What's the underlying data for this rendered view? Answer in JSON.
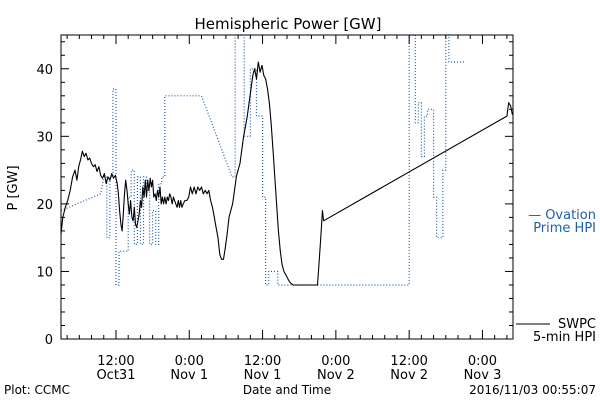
{
  "chart_data": {
    "type": "line",
    "title": "Hemispheric Power [GW]",
    "xlabel": "Date and Time",
    "ylabel": "P [GW]",
    "x_unit": "hours after 2016-10-31 00:00",
    "xlim": [
      3,
      77
    ],
    "ylim": [
      0,
      45
    ],
    "y_ticks": [
      0,
      10,
      20,
      30,
      40
    ],
    "x_ticks": [
      {
        "x": 12,
        "top": "12:00",
        "bottom": "Oct31"
      },
      {
        "x": 24,
        "top": "0:00",
        "bottom": "Nov 1"
      },
      {
        "x": 36,
        "top": "12:00",
        "bottom": "Nov 1"
      },
      {
        "x": 48,
        "top": "0:00",
        "bottom": "Nov 2"
      },
      {
        "x": 60,
        "top": "12:00",
        "bottom": "Nov 2"
      },
      {
        "x": 72,
        "top": "0:00",
        "bottom": "Nov 3"
      }
    ],
    "legend": {
      "ovation_lines": [
        "— Ovation",
        "Prime HPI"
      ],
      "swpc_lines": [
        "SWPC",
        "5-min HPI"
      ],
      "placement": "right"
    },
    "footer": {
      "left": "Plot: CCMC",
      "right": "2016/11/03 00:55:07"
    },
    "colors": {
      "swpc": "#000000",
      "ovation": "#1f5fa8",
      "axes": "#000000"
    },
    "series": [
      {
        "name": "SWPC 5-min HPI",
        "style": "solid",
        "points": [
          [
            3.0,
            15.5
          ],
          [
            3.3,
            18.0
          ],
          [
            3.7,
            19.5
          ],
          [
            4.1,
            20.5
          ],
          [
            4.5,
            22.0
          ],
          [
            4.9,
            24.0
          ],
          [
            5.3,
            25.0
          ],
          [
            5.6,
            23.5
          ],
          [
            5.9,
            25.5
          ],
          [
            6.2,
            26.5
          ],
          [
            6.5,
            27.8
          ],
          [
            6.8,
            27.0
          ],
          [
            7.1,
            27.5
          ],
          [
            7.4,
            26.5
          ],
          [
            7.7,
            26.8
          ],
          [
            8.0,
            26.0
          ],
          [
            8.3,
            25.5
          ],
          [
            8.6,
            25.8
          ],
          [
            8.9,
            24.8
          ],
          [
            9.2,
            25.5
          ],
          [
            9.5,
            24.2
          ],
          [
            9.8,
            23.8
          ],
          [
            10.1,
            24.5
          ],
          [
            10.4,
            23.0
          ],
          [
            10.7,
            24.0
          ],
          [
            11.0,
            23.5
          ],
          [
            11.3,
            24.5
          ],
          [
            11.6,
            23.8
          ],
          [
            11.9,
            24.2
          ],
          [
            12.2,
            23.0
          ],
          [
            12.4,
            21.5
          ],
          [
            12.6,
            19.0
          ],
          [
            12.8,
            17.0
          ],
          [
            13.0,
            16.0
          ],
          [
            13.2,
            18.5
          ],
          [
            13.4,
            21.5
          ],
          [
            13.6,
            23.5
          ],
          [
            13.8,
            22.0
          ],
          [
            14.0,
            20.0
          ],
          [
            14.2,
            18.5
          ],
          [
            14.4,
            20.5
          ],
          [
            14.6,
            18.0
          ],
          [
            14.8,
            17.5
          ],
          [
            15.0,
            19.5
          ],
          [
            15.2,
            17.0
          ],
          [
            15.4,
            16.5
          ],
          [
            15.6,
            17.5
          ],
          [
            15.8,
            18.5
          ],
          [
            16.0,
            20.5
          ],
          [
            16.2,
            19.5
          ],
          [
            16.4,
            22.5
          ],
          [
            16.6,
            21.0
          ],
          [
            16.8,
            23.5
          ],
          [
            17.0,
            21.0
          ],
          [
            17.2,
            23.5
          ],
          [
            17.4,
            22.0
          ],
          [
            17.6,
            23.8
          ],
          [
            17.8,
            22.5
          ],
          [
            18.0,
            23.5
          ],
          [
            18.2,
            21.0
          ],
          [
            18.4,
            21.5
          ],
          [
            18.6,
            20.5
          ],
          [
            18.8,
            22.0
          ],
          [
            19.0,
            21.0
          ],
          [
            19.2,
            22.5
          ],
          [
            19.4,
            20.0
          ],
          [
            19.6,
            21.0
          ],
          [
            19.8,
            20.0
          ],
          [
            20.0,
            21.0
          ],
          [
            20.2,
            20.0
          ],
          [
            20.4,
            21.0
          ],
          [
            20.6,
            20.5
          ],
          [
            20.8,
            21.5
          ],
          [
            21.0,
            21.0
          ],
          [
            21.2,
            20.0
          ],
          [
            21.4,
            21.0
          ],
          [
            21.6,
            20.5
          ],
          [
            21.8,
            20.0
          ],
          [
            22.0,
            19.5
          ],
          [
            22.2,
            20.5
          ],
          [
            22.4,
            19.5
          ],
          [
            22.6,
            20.5
          ],
          [
            22.8,
            19.5
          ],
          [
            23.0,
            20.0
          ],
          [
            23.3,
            20.5
          ],
          [
            23.6,
            20.5
          ],
          [
            23.9,
            21.0
          ],
          [
            24.2,
            22.5
          ],
          [
            24.5,
            21.5
          ],
          [
            24.8,
            22.5
          ],
          [
            25.1,
            21.5
          ],
          [
            25.4,
            22.5
          ],
          [
            25.7,
            22.0
          ],
          [
            26.0,
            22.5
          ],
          [
            26.3,
            21.5
          ],
          [
            26.6,
            22.0
          ],
          [
            26.9,
            21.5
          ],
          [
            27.2,
            22.0
          ],
          [
            27.5,
            20.5
          ],
          [
            27.8,
            19.5
          ],
          [
            28.1,
            18.0
          ],
          [
            28.4,
            16.5
          ],
          [
            28.7,
            15.0
          ],
          [
            29.0,
            12.5
          ],
          [
            29.3,
            11.8
          ],
          [
            29.6,
            11.8
          ],
          [
            29.9,
            13.5
          ],
          [
            30.2,
            15.5
          ],
          [
            30.5,
            18.0
          ],
          [
            30.8,
            19.0
          ],
          [
            31.1,
            20.0
          ],
          [
            31.4,
            22.0
          ],
          [
            31.7,
            24.0
          ],
          [
            32.0,
            25.0
          ],
          [
            32.3,
            26.0
          ],
          [
            32.6,
            28.0
          ],
          [
            32.9,
            30.0
          ],
          [
            33.2,
            31.5
          ],
          [
            33.5,
            33.0
          ],
          [
            33.8,
            35.0
          ],
          [
            34.1,
            37.0
          ],
          [
            34.4,
            39.0
          ],
          [
            34.7,
            40.0
          ],
          [
            35.0,
            38.5
          ],
          [
            35.3,
            41.0
          ],
          [
            35.6,
            39.5
          ],
          [
            35.9,
            40.5
          ],
          [
            36.2,
            39.0
          ],
          [
            36.5,
            38.5
          ],
          [
            36.8,
            37.0
          ],
          [
            37.1,
            35.0
          ],
          [
            37.4,
            32.0
          ],
          [
            37.7,
            28.0
          ],
          [
            38.0,
            24.0
          ],
          [
            38.3,
            20.0
          ],
          [
            38.6,
            16.0
          ],
          [
            38.9,
            13.0
          ],
          [
            39.2,
            11.0
          ],
          [
            39.5,
            10.0
          ],
          [
            39.8,
            9.5
          ],
          [
            40.1,
            9.0
          ],
          [
            40.4,
            8.5
          ],
          [
            40.7,
            8.2
          ],
          [
            41.0,
            8.0
          ],
          [
            41.5,
            8.0
          ],
          [
            42.0,
            8.0
          ],
          [
            42.5,
            8.0
          ],
          [
            43.0,
            8.0
          ],
          [
            43.5,
            8.0
          ],
          [
            44.0,
            8.0
          ],
          [
            44.5,
            8.0
          ],
          [
            45.0,
            8.0
          ],
          [
            45.3,
            12.0
          ],
          [
            45.6,
            16.0
          ],
          [
            45.8,
            19.0
          ],
          [
            46.0,
            17.5
          ],
          [
            76.0,
            33.0
          ],
          [
            76.3,
            35.0
          ],
          [
            76.6,
            34.5
          ],
          [
            76.9,
            33.2
          ]
        ]
      },
      {
        "name": "Ovation Prime HPI",
        "style": "dotted",
        "points": [
          [
            3.0,
            19.0
          ],
          [
            9.5,
            21.5
          ],
          [
            10.0,
            24.0
          ],
          [
            10.5,
            24.0
          ],
          [
            10.5,
            15.0
          ],
          [
            11.0,
            15.0
          ],
          [
            11.0,
            24.0
          ],
          [
            11.5,
            24.0
          ],
          [
            11.5,
            37.0
          ],
          [
            12.0,
            37.0
          ],
          [
            12.0,
            8.0
          ],
          [
            12.5,
            8.0
          ],
          [
            12.5,
            13.0
          ],
          [
            14.0,
            13.0
          ],
          [
            14.0,
            21.0
          ],
          [
            14.5,
            21.0
          ],
          [
            14.5,
            25.0
          ],
          [
            15.0,
            25.0
          ],
          [
            15.0,
            14.0
          ],
          [
            15.5,
            14.0
          ],
          [
            15.5,
            24.0
          ],
          [
            16.0,
            24.0
          ],
          [
            16.0,
            14.0
          ],
          [
            16.5,
            14.0
          ],
          [
            16.5,
            24.0
          ],
          [
            17.0,
            24.0
          ],
          [
            17.0,
            22.0
          ],
          [
            17.5,
            22.0
          ],
          [
            17.5,
            14.0
          ],
          [
            18.0,
            14.0
          ],
          [
            18.0,
            19.0
          ],
          [
            18.5,
            19.0
          ],
          [
            18.5,
            14.0
          ],
          [
            19.0,
            14.0
          ],
          [
            19.0,
            23.0
          ],
          [
            19.5,
            23.0
          ],
          [
            19.5,
            24.0
          ],
          [
            20.0,
            24.0
          ],
          [
            20.0,
            36.0
          ],
          [
            23.0,
            36.0
          ],
          [
            26.0,
            36.0
          ],
          [
            31.0,
            24.0
          ],
          [
            31.5,
            24.0
          ],
          [
            31.5,
            45.0
          ],
          [
            33.0,
            45.0
          ],
          [
            33.0,
            30.0
          ],
          [
            34.0,
            30.0
          ],
          [
            34.0,
            40.0
          ],
          [
            35.0,
            40.0
          ],
          [
            35.0,
            33.0
          ],
          [
            36.0,
            33.0
          ],
          [
            36.0,
            21.0
          ],
          [
            36.5,
            21.0
          ],
          [
            36.5,
            8.0
          ],
          [
            37.0,
            8.0
          ],
          [
            37.0,
            10.0
          ],
          [
            38.5,
            10.0
          ],
          [
            38.5,
            8.0
          ],
          [
            60.0,
            8.0
          ],
          [
            60.0,
            45.0
          ],
          [
            61.0,
            45.0
          ],
          [
            61.0,
            32.0
          ],
          [
            61.5,
            32.0
          ],
          [
            61.5,
            35.0
          ],
          [
            62.0,
            35.0
          ],
          [
            62.0,
            27.0
          ],
          [
            62.5,
            27.0
          ],
          [
            62.5,
            33.0
          ],
          [
            63.0,
            33.0
          ],
          [
            63.0,
            34.0
          ],
          [
            64.0,
            34.0
          ],
          [
            64.0,
            21.0
          ],
          [
            64.5,
            21.0
          ],
          [
            64.5,
            15.0
          ],
          [
            65.5,
            15.0
          ],
          [
            65.5,
            25.0
          ],
          [
            66.0,
            25.0
          ],
          [
            66.0,
            45.0
          ],
          [
            66.5,
            45.0
          ],
          [
            66.5,
            41.0
          ],
          [
            69.0,
            41.0
          ]
        ]
      }
    ]
  }
}
